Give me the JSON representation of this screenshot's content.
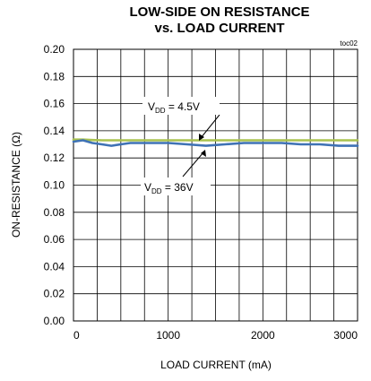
{
  "chart_data": {
    "type": "line",
    "title_line1": "LOW-SIDE ON RESISTANCE",
    "title_line2": "vs. LOAD CURRENT",
    "figure_code": "toc02",
    "xlabel": "LOAD CURRENT (mA)",
    "ylabel": "ON-RESISTANCE (Ω)",
    "xlim": [
      0,
      3000
    ],
    "ylim": [
      0,
      0.2
    ],
    "x_ticks": [
      0,
      1000,
      2000,
      3000
    ],
    "x_tick_labels": [
      "0",
      "1000",
      "2000",
      "3000"
    ],
    "y_ticks": [
      0,
      0.02,
      0.04,
      0.06,
      0.08,
      0.1,
      0.12,
      0.14,
      0.16,
      0.18,
      0.2
    ],
    "y_tick_labels": [
      "0.00",
      "0.02",
      "0.04",
      "0.06",
      "0.08",
      "0.10",
      "0.12",
      "0.14",
      "0.16",
      "0.18",
      "0.20"
    ],
    "grid": true,
    "series": [
      {
        "key": "vdd45",
        "label_parts": [
          "V",
          "DD",
          " = 4.5V"
        ],
        "color": "#a9c24e",
        "x": [
          0,
          100,
          200,
          300,
          400,
          500,
          600,
          700,
          800,
          900,
          1000,
          1200,
          1400,
          1600,
          1800,
          2000,
          2200,
          2400,
          2600,
          2800,
          3000
        ],
        "values": [
          0.1335,
          0.1335,
          0.1332,
          0.133,
          0.133,
          0.133,
          0.133,
          0.133,
          0.133,
          0.133,
          0.133,
          0.133,
          0.133,
          0.133,
          0.133,
          0.133,
          0.133,
          0.133,
          0.133,
          0.133,
          0.133
        ]
      },
      {
        "key": "vdd36",
        "label_parts": [
          "V",
          "DD",
          " = 36V"
        ],
        "color": "#3f72b5",
        "x": [
          0,
          100,
          200,
          300,
          400,
          500,
          600,
          700,
          800,
          900,
          1000,
          1200,
          1400,
          1600,
          1800,
          2000,
          2200,
          2400,
          2600,
          2800,
          3000
        ],
        "values": [
          0.132,
          0.133,
          0.131,
          0.13,
          0.129,
          0.13,
          0.131,
          0.131,
          0.131,
          0.131,
          0.131,
          0.13,
          0.129,
          0.13,
          0.131,
          0.131,
          0.131,
          0.13,
          0.13,
          0.129,
          0.129
        ]
      }
    ]
  }
}
